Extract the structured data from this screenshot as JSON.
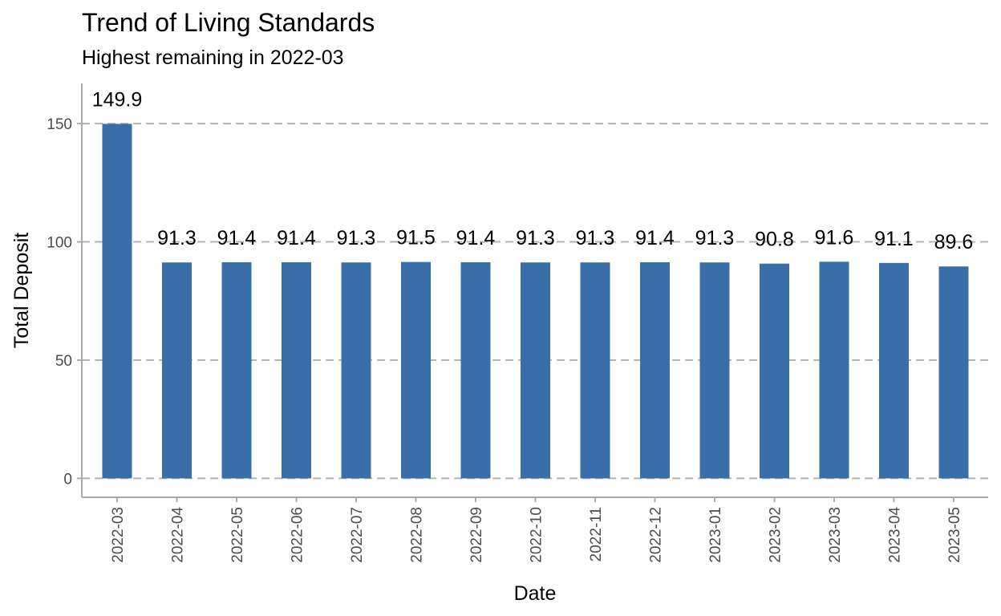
{
  "chart_data": {
    "type": "bar",
    "title": "Trend of Living Standards",
    "subtitle": "Highest remaining in 2022-03",
    "xlabel": "Date",
    "ylabel": "Total Deposit",
    "categories": [
      "2022-03",
      "2022-04",
      "2022-05",
      "2022-06",
      "2022-07",
      "2022-08",
      "2022-09",
      "2022-10",
      "2022-11",
      "2022-12",
      "2023-01",
      "2023-02",
      "2023-03",
      "2023-04",
      "2023-05"
    ],
    "values": [
      149.9,
      91.3,
      91.4,
      91.4,
      91.3,
      91.5,
      91.4,
      91.3,
      91.3,
      91.4,
      91.3,
      90.8,
      91.6,
      91.1,
      89.6
    ],
    "data_labels": [
      "149.9",
      "91.3",
      "91.4",
      "91.4",
      "91.3",
      "91.5",
      "91.4",
      "91.3",
      "91.3",
      "91.4",
      "91.3",
      "90.8",
      "91.6",
      "91.1",
      "89.6"
    ],
    "yticks": [
      0,
      50,
      100,
      150
    ],
    "ylim": [
      -8,
      167
    ],
    "grid": "horizontal dashed",
    "bar_color": "#3A6EA8",
    "grid_color": "#B3B3B3",
    "axis_color": "#AAAAAA"
  }
}
